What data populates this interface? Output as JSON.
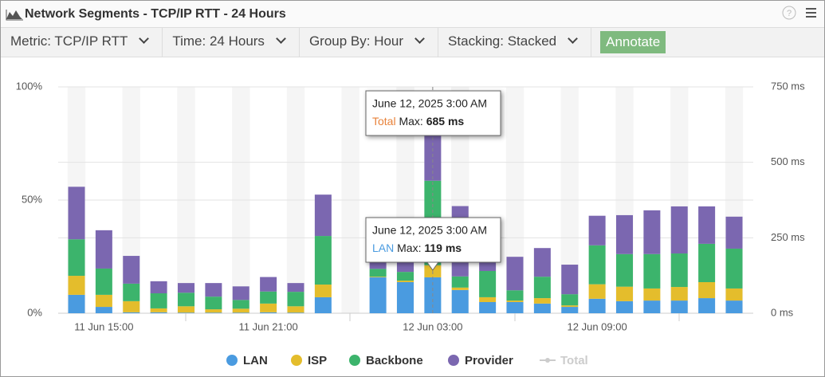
{
  "header": {
    "title": "Network Segments - TCP/IP RTT - 24 Hours"
  },
  "toolbar": {
    "metric": "Metric: TCP/IP RTT",
    "time": "Time: 24 Hours",
    "group_by": "Group By: Hour",
    "stacking": "Stacking: Stacked",
    "button": "Annotate"
  },
  "chart_data": {
    "type": "bar",
    "stacked": true,
    "grid": true,
    "categories": [
      null,
      "11 Jun 15:00",
      null,
      null,
      null,
      null,
      null,
      "11 Jun 21:00",
      null,
      null,
      null,
      null,
      null,
      "12 Jun 03:00",
      null,
      null,
      null,
      null,
      null,
      "12 Jun 09:00",
      null,
      null,
      null,
      null,
      null
    ],
    "ylim": [
      0,
      750
    ],
    "yticks": [
      {
        "value": 0,
        "label": "0 ms"
      },
      {
        "value": 250,
        "label": "250 ms"
      },
      {
        "value": 500,
        "label": "500 ms"
      },
      {
        "value": 750,
        "label": "750 ms"
      }
    ],
    "y2lim": [
      0,
      100
    ],
    "y2ticks": [
      {
        "value": 0,
        "label": "0%"
      },
      {
        "value": 50,
        "label": "50%"
      },
      {
        "value": 100,
        "label": "100%"
      }
    ],
    "series": [
      {
        "name": "LAN",
        "color": "#4a9be0",
        "values": [
          61,
          21,
          3,
          3,
          2,
          2,
          2,
          3,
          2,
          53,
          null,
          119,
          103,
          119,
          77,
          37,
          37,
          32,
          21,
          48,
          40,
          42,
          42,
          50,
          42
        ]
      },
      {
        "name": "ISP",
        "color": "#e4bd2c",
        "values": [
          63,
          40,
          37,
          13,
          21,
          11,
          13,
          29,
          21,
          42,
          null,
          2,
          5,
          40,
          8,
          16,
          5,
          18,
          5,
          48,
          48,
          40,
          45,
          53,
          40
        ]
      },
      {
        "name": "Backbone",
        "color": "#3cb46c",
        "values": [
          121,
          87,
          58,
          50,
          45,
          42,
          29,
          40,
          48,
          161,
          null,
          26,
          29,
          280,
          37,
          87,
          34,
          71,
          37,
          129,
          108,
          114,
          111,
          127,
          132
        ]
      },
      {
        "name": "Provider",
        "color": "#7b67b0",
        "values": [
          174,
          127,
          92,
          40,
          32,
          45,
          45,
          48,
          29,
          137,
          null,
          98,
          79,
          246,
          233,
          100,
          111,
          95,
          98,
          98,
          129,
          145,
          156,
          124,
          106
        ]
      }
    ],
    "inactive_legend": [
      "Total"
    ],
    "tooltips": [
      {
        "date": "June 12, 2025 3:00 AM",
        "series": "Total",
        "stat": "Max:",
        "value": "685 ms"
      },
      {
        "date": "June 12, 2025 3:00 AM",
        "series": "LAN",
        "stat": "Max:",
        "value": "119 ms"
      }
    ]
  }
}
